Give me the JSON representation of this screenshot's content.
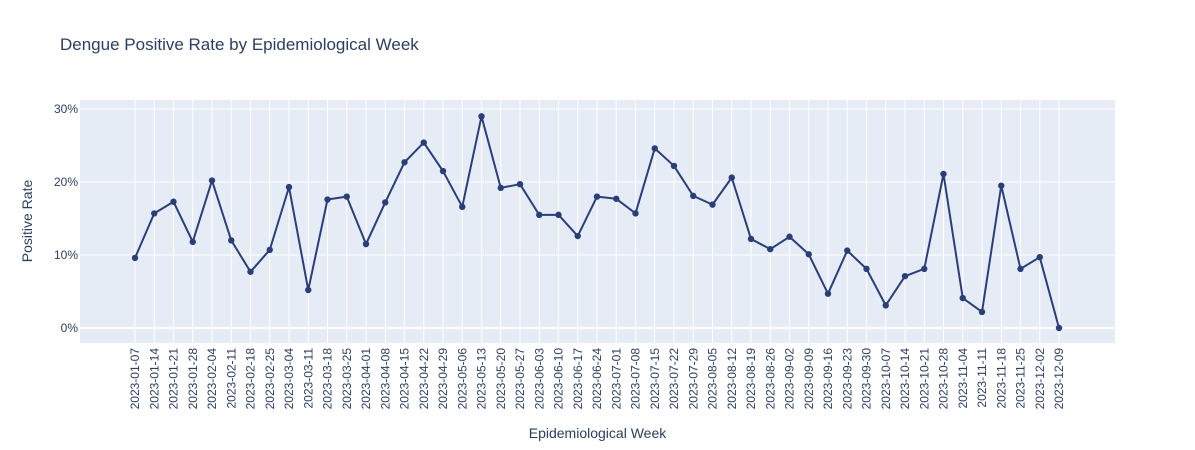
{
  "chart_data": {
    "type": "line",
    "title": "Dengue Positive Rate by Epidemiological Week",
    "xlabel": "Epidemiological Week",
    "ylabel": "Positive Rate",
    "ylim": [
      0,
      0.3
    ],
    "yticks": [
      0,
      0.1,
      0.2,
      0.3
    ],
    "ytick_labels": [
      "0%",
      "10%",
      "20%",
      "30%"
    ],
    "grid": true,
    "colors": {
      "plot_bg": "#e5ecf6",
      "grid": "#ffffff",
      "line": "#2a3f7a",
      "text": "#2a3f5f"
    },
    "x": [
      "2023-01-07",
      "2023-01-14",
      "2023-01-21",
      "2023-01-28",
      "2023-02-04",
      "2023-02-11",
      "2023-02-18",
      "2023-02-25",
      "2023-03-04",
      "2023-03-11",
      "2023-03-18",
      "2023-03-25",
      "2023-04-01",
      "2023-04-08",
      "2023-04-15",
      "2023-04-22",
      "2023-04-29",
      "2023-05-06",
      "2023-05-13",
      "2023-05-20",
      "2023-05-27",
      "2023-06-03",
      "2023-06-10",
      "2023-06-17",
      "2023-06-24",
      "2023-07-01",
      "2023-07-08",
      "2023-07-15",
      "2023-07-22",
      "2023-07-29",
      "2023-08-05",
      "2023-08-12",
      "2023-08-19",
      "2023-08-26",
      "2023-09-02",
      "2023-09-09",
      "2023-09-16",
      "2023-09-23",
      "2023-09-30",
      "2023-10-07",
      "2023-10-14",
      "2023-10-21",
      "2023-10-28",
      "2023-11-04",
      "2023-11-11",
      "2023-11-18",
      "2023-11-25",
      "2023-12-02",
      "2023-12-09"
    ],
    "series": [
      {
        "values": [
          0.096,
          0.157,
          0.173,
          0.118,
          0.202,
          0.12,
          0.077,
          0.107,
          0.193,
          0.052,
          0.176,
          0.18,
          0.115,
          0.172,
          0.227,
          0.254,
          0.215,
          0.166,
          0.29,
          0.192,
          0.197,
          0.155,
          0.155,
          0.126,
          0.18,
          0.177,
          0.157,
          0.246,
          0.222,
          0.181,
          0.169,
          0.206,
          0.122,
          0.108,
          0.125,
          0.101,
          0.047,
          0.106,
          0.081,
          0.031,
          0.071,
          0.081,
          0.211,
          0.041,
          0.022,
          0.195,
          0.081,
          0.097,
          0.0
        ]
      }
    ]
  }
}
